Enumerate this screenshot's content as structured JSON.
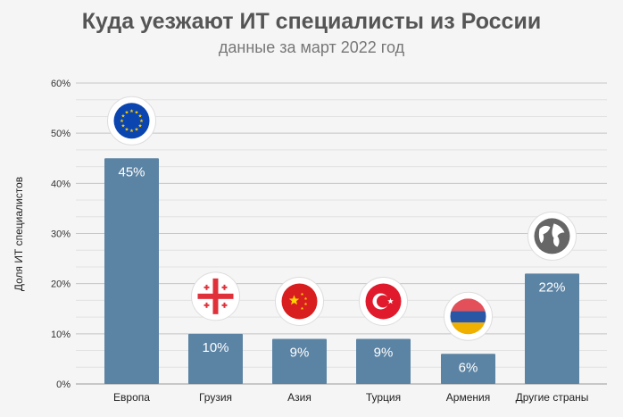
{
  "chart_data": {
    "type": "bar",
    "title": "Куда уезжают ИТ специалисты из России",
    "subtitle": "данные за март 2022 год",
    "ylabel": "Доля ИТ специалистов",
    "xlabel": "",
    "ylim": [
      0,
      60
    ],
    "yticks": [
      "0%",
      "10%",
      "20%",
      "30%",
      "40%",
      "50%",
      "60%"
    ],
    "categories": [
      "Европа",
      "Грузия",
      "Азия",
      "Турция",
      "Армения",
      "Другие страны"
    ],
    "values": [
      45,
      10,
      9,
      9,
      6,
      22
    ],
    "data_labels": [
      "45%",
      "10%",
      "9%",
      "9%",
      "6%",
      "22%"
    ],
    "icons": [
      "eu-flag-icon",
      "georgia-flag-icon",
      "china-flag-icon",
      "turkey-flag-icon",
      "armenia-flag-icon",
      "globe-icon"
    ],
    "grid": true,
    "bar_color": "#5b83a4"
  }
}
